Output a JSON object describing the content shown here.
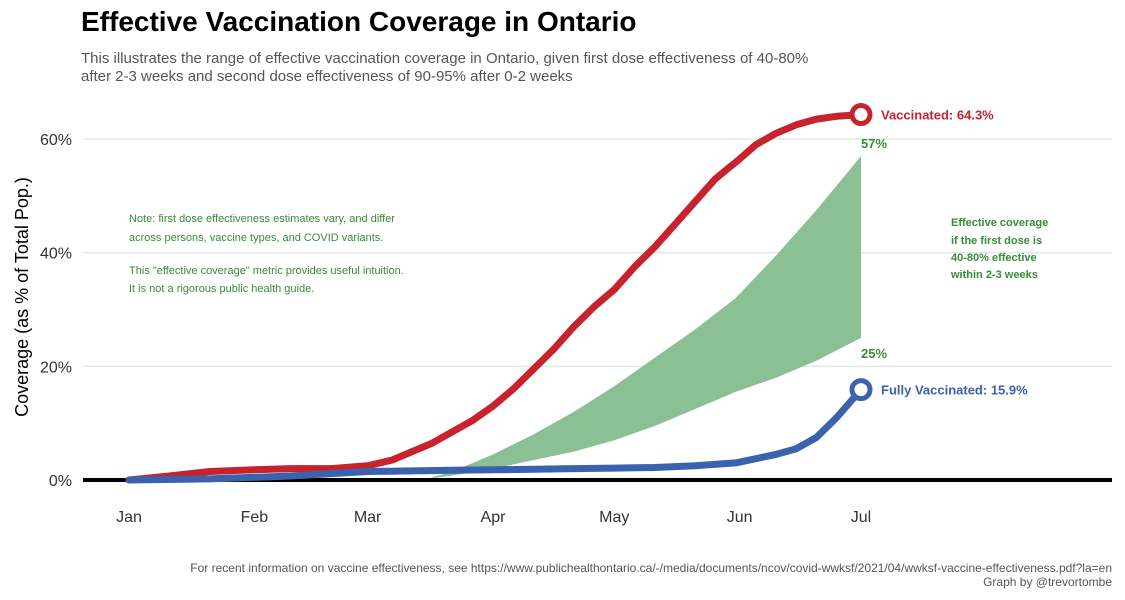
{
  "title": "Effective Vaccination Coverage in Ontario",
  "subtitle": "This illustrates the range of effective vaccination coverage in Ontario, given first dose effectiveness of 40-80% after 2-3 weeks and second dose effectiveness of 90-95% after 0-2 weeks",
  "caption": {
    "line1": "For recent information on vaccine effectiveness, see https://www.publichealthontario.ca/-/media/documents/ncov/covid-wwksf/2021/04/wwksf-vaccine-effectiveness.pdf?la=en",
    "line2": "Graph by @trevortombe"
  },
  "colors": {
    "vaccinated": "#c8232c",
    "fully": "#3a62ad",
    "band": "#8bbf94",
    "band_text": "#3a8a3a",
    "grid": "#e6e6e6",
    "baseline": "#000000"
  },
  "notes": {
    "note_lines": [
      "Note: first dose effectiveness estimates vary, and differ",
      "across persons, vaccine types, and COVID variants.",
      "",
      "This \"effective coverage\" metric provides useful intuition.",
      "It is not a rigorous public health guide."
    ],
    "band_lines": [
      "Effective coverage",
      "if the first dose is",
      "40-80% effective",
      "within 2-3 weeks"
    ]
  },
  "chart_data": {
    "type": "line",
    "ylabel": "Coverage (as % of Total Pop.)",
    "xlabel": "",
    "x_ticks": [
      "Jan",
      "Feb",
      "Mar",
      "Apr",
      "May",
      "Jun",
      "Jul"
    ],
    "y_ticks": [
      "0%",
      "20%",
      "40%",
      "60%"
    ],
    "ylim": [
      0,
      65
    ],
    "x_unit": "day of 2021",
    "xlim": [
      -5,
      210
    ],
    "grid": true,
    "series": [
      {
        "name": "Vaccinated",
        "end_label": "Vaccinated: 64.3%",
        "x": [
          0,
          10,
          20,
          31,
          40,
          50,
          59,
          65,
          75,
          80,
          85,
          90,
          95,
          100,
          105,
          110,
          115,
          120,
          125,
          130,
          135,
          140,
          145,
          151,
          155,
          160,
          165,
          170,
          175,
          181
        ],
        "y": [
          0,
          0.7,
          1.5,
          1.8,
          2.0,
          2.0,
          2.5,
          3.5,
          6.5,
          8.5,
          10.5,
          13.0,
          16.0,
          19.5,
          23.0,
          27.0,
          30.5,
          33.5,
          37.5,
          41.0,
          45.0,
          49.0,
          53.0,
          56.5,
          59.0,
          61.0,
          62.5,
          63.5,
          64.0,
          64.3
        ]
      },
      {
        "name": "Fully Vaccinated",
        "end_label": "Fully Vaccinated: 15.9%",
        "x": [
          0,
          20,
          40,
          59,
          70,
          80,
          90,
          100,
          110,
          120,
          130,
          140,
          150,
          160,
          165,
          170,
          175,
          181
        ],
        "y": [
          0,
          0.2,
          0.7,
          1.5,
          1.6,
          1.7,
          1.8,
          1.9,
          2.0,
          2.1,
          2.2,
          2.5,
          3.0,
          4.5,
          5.5,
          7.5,
          11.0,
          15.9
        ]
      }
    ],
    "band": {
      "name": "Effective coverage",
      "x": [
        75,
        80,
        90,
        100,
        110,
        120,
        130,
        140,
        150,
        160,
        170,
        181
      ],
      "lower": [
        0.3,
        0.8,
        2.0,
        3.5,
        5.0,
        7.0,
        9.5,
        12.5,
        15.5,
        18.0,
        21.0,
        25.0
      ],
      "upper": [
        0.5,
        1.5,
        4.5,
        8.0,
        12.0,
        16.5,
        21.5,
        26.5,
        32.0,
        39.5,
        47.5,
        57.0
      ],
      "upper_label": "57%",
      "lower_label": "25%"
    }
  }
}
